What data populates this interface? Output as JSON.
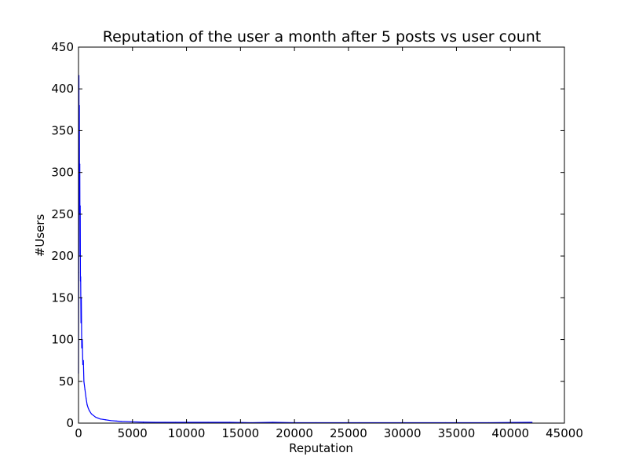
{
  "chart_data": {
    "type": "line",
    "title": "Reputation of the user a month after 5 posts vs user count",
    "xlabel": "Reputation",
    "ylabel": "#Users",
    "xlim": [
      0,
      45000
    ],
    "ylim": [
      0,
      450
    ],
    "xticks": [
      "0",
      "5000",
      "10000",
      "15000",
      "20000",
      "25000",
      "30000",
      "35000",
      "40000",
      "45000"
    ],
    "yticks": [
      "0",
      "50",
      "100",
      "150",
      "200",
      "250",
      "300",
      "350",
      "400",
      "450"
    ],
    "grid": false,
    "legend": "none",
    "series": [
      {
        "color": "#0000ff",
        "x": [
          1,
          20,
          40,
          60,
          80,
          100,
          120,
          140,
          160,
          180,
          200,
          230,
          260,
          300,
          350,
          400,
          450,
          500,
          600,
          700,
          800,
          900,
          1000,
          1200,
          1400,
          1600,
          1800,
          2000,
          2500,
          3000,
          3500,
          4000,
          4500,
          5000,
          6000,
          7000,
          8000,
          9000,
          10000,
          12000,
          14000,
          16000,
          18000,
          20000,
          22000,
          26000,
          30000,
          34000,
          38000,
          42000
        ],
        "y": [
          60,
          180,
          416,
          300,
          380,
          250,
          310,
          200,
          260,
          170,
          175,
          120,
          150,
          90,
          100,
          70,
          75,
          50,
          40,
          30,
          22,
          18,
          15,
          11,
          9,
          7,
          6,
          5,
          4,
          3,
          2.5,
          2,
          1.8,
          1.5,
          1.2,
          1,
          1,
          1,
          1,
          1,
          1,
          0.5,
          1,
          0.5,
          0.5,
          0.5,
          0.5,
          0.5,
          0.5,
          1
        ]
      }
    ]
  }
}
